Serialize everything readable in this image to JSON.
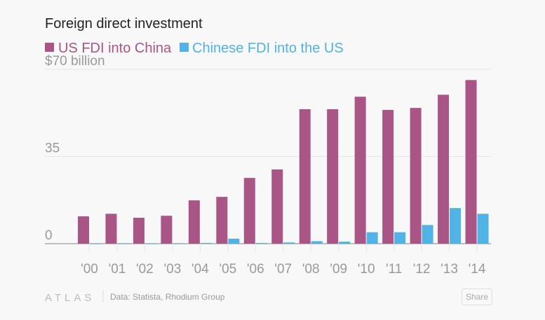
{
  "chart_data": {
    "type": "bar",
    "title": "Foreign direct investment",
    "categories": [
      "'00",
      "'01",
      "'02",
      "'03",
      "'04",
      "'05",
      "'06",
      "'07",
      "'08",
      "'09",
      "'10",
      "'11",
      "'12",
      "'13",
      "'14"
    ],
    "series": [
      {
        "name": "US FDI into China",
        "color": "#a95686",
        "values": [
          11.0,
          12.0,
          10.4,
          11.2,
          17.4,
          18.8,
          26.4,
          29.8,
          54.0,
          54.0,
          59.0,
          53.7,
          54.5,
          59.8,
          65.7
        ]
      },
      {
        "name": "Chinese FDI into the US",
        "color": "#51b2e5",
        "values": [
          0.1,
          0.1,
          0.1,
          0.1,
          0.3,
          2.0,
          0.3,
          0.5,
          1.0,
          0.8,
          4.6,
          4.6,
          7.5,
          14.3,
          12.0
        ]
      }
    ],
    "yticks": [
      {
        "value": 0,
        "label": "0"
      },
      {
        "value": 35,
        "label": "35"
      },
      {
        "value": 70,
        "label": "$70 billion"
      }
    ],
    "ylim": [
      0,
      70
    ],
    "xlabel": "",
    "ylabel": "",
    "grid": true,
    "legend_position": "top-left"
  },
  "footer": {
    "logo": "ATLAS",
    "source": "Data: Statista, Rhodium Group",
    "share_label": "Share"
  }
}
